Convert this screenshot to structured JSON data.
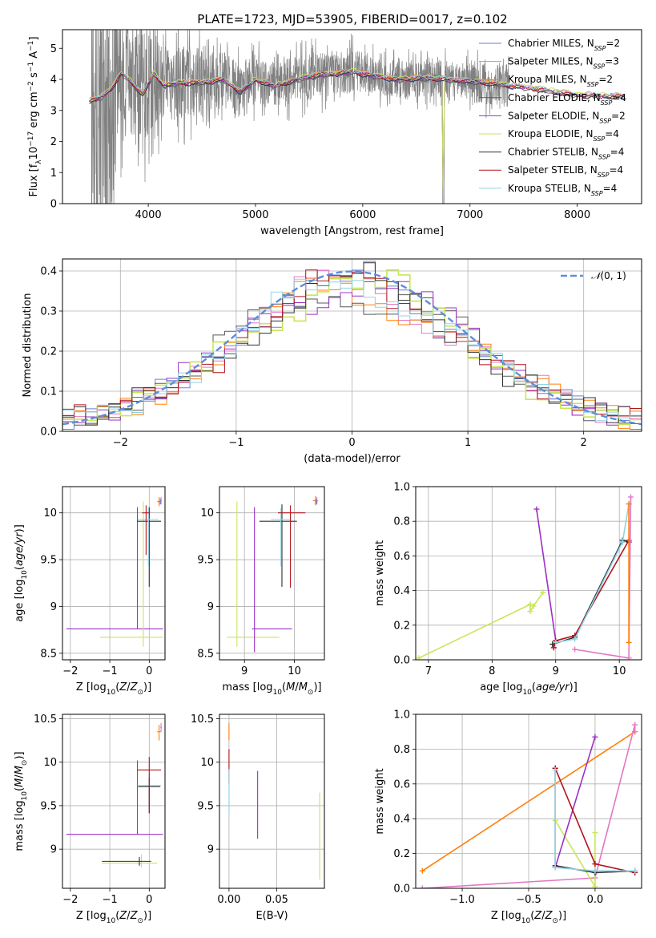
{
  "title": "PLATE=1723, MJD=53905, FIBERID=0017, z=0.102",
  "colors": {
    "Chabrier MILES": "#6a7fd8",
    "Salpeter MILES": "#e377c2",
    "Kroupa MILES": "#ff7f0e",
    "Chabrier ELODIE": "#595959",
    "Salpeter ELODIE": "#9b30c4",
    "Kroupa ELODIE": "#c7e65a",
    "Chabrier STELIB": "#303030",
    "Salpeter STELIB": "#b3141c",
    "Kroupa STELIB": "#8fd3e6",
    "data": "#808080",
    "gauss": "#5b8fd9"
  },
  "legend": [
    {
      "name": "Chabrier MILES",
      "nssp": "2"
    },
    {
      "name": "Salpeter MILES",
      "nssp": "3"
    },
    {
      "name": "Kroupa MILES",
      "nssp": "2"
    },
    {
      "name": "Chabrier ELODIE",
      "nssp": "4"
    },
    {
      "name": "Salpeter ELODIE",
      "nssp": "2"
    },
    {
      "name": "Kroupa ELODIE",
      "nssp": "4"
    },
    {
      "name": "Chabrier STELIB",
      "nssp": "4"
    },
    {
      "name": "Salpeter STELIB",
      "nssp": "4"
    },
    {
      "name": "Kroupa STELIB",
      "nssp": "4"
    }
  ],
  "chart_data": [
    {
      "type": "line",
      "id": "spectrum",
      "xlabel": "wavelength [Angstrom, rest frame]",
      "ylabel": "Flux [f_λ 10^-17 erg cm^-2 s^-1 A^-1]",
      "xlim": [
        3200,
        8600
      ],
      "ylim": [
        0,
        5.6
      ],
      "xticks": [
        4000,
        5000,
        6000,
        7000,
        8000
      ],
      "yticks": [
        0,
        1,
        2,
        3,
        4,
        5
      ],
      "data_range": [
        3470,
        7360
      ],
      "model_range": [
        3450,
        8450
      ],
      "model_anchors": [
        [
          3450,
          3.3
        ],
        [
          3550,
          3.4
        ],
        [
          3650,
          3.7
        ],
        [
          3750,
          4.2
        ],
        [
          3850,
          3.9
        ],
        [
          3950,
          3.5
        ],
        [
          4050,
          4.2
        ],
        [
          4150,
          3.8
        ],
        [
          4300,
          3.9
        ],
        [
          4500,
          3.9
        ],
        [
          4700,
          4.0
        ],
        [
          4860,
          3.6
        ],
        [
          5000,
          4.0
        ],
        [
          5175,
          3.8
        ],
        [
          5500,
          4.1
        ],
        [
          5900,
          4.25
        ],
        [
          6300,
          4.0
        ],
        [
          6563,
          4.05
        ],
        [
          7000,
          3.95
        ],
        [
          7500,
          3.75
        ],
        [
          8000,
          3.5
        ],
        [
          8450,
          3.45
        ]
      ]
    },
    {
      "type": "line",
      "id": "residual-histogram",
      "xlabel": "(data-model)/error",
      "ylabel": "Normed distribution",
      "xlim": [
        -2.5,
        2.5
      ],
      "ylim": [
        0,
        0.43
      ],
      "xticks": [
        -2,
        -1,
        0,
        1,
        2
      ],
      "yticks": [
        0.0,
        0.1,
        0.2,
        0.3,
        0.4
      ],
      "legend_label": "N(0,1)",
      "bins": 50
    },
    {
      "type": "scatter",
      "id": "age-vs-Z",
      "xlabel": "Z [log10(Z/Z⊙)]",
      "ylabel": "age  [log10(age/yr)]",
      "xlim": [
        -2.2,
        0.4
      ],
      "ylim": [
        8.43,
        10.28
      ],
      "xticks": [
        -2,
        -1,
        0
      ],
      "yticks": [
        8.5,
        9.0,
        9.5,
        10.0
      ],
      "points": [
        {
          "model": "Salpeter ELODIE",
          "x": -0.3,
          "xerr": [
            1.8,
            0.65
          ],
          "y": 8.76,
          "yerr": [
            0,
            1.3
          ]
        },
        {
          "model": "Kroupa ELODIE",
          "x": -0.15,
          "xerr": [
            1.1,
            0.5
          ],
          "y": 8.67,
          "yerr": [
            0.1,
            1.45
          ]
        },
        {
          "model": "Chabrier STELIB",
          "x": 0.0,
          "xerr": [
            0.3,
            0.3
          ],
          "y": 9.91,
          "yerr": [
            0.7,
            0.15
          ]
        },
        {
          "model": "Kroupa STELIB",
          "x": -0.02,
          "xerr": [
            0.27,
            0.25
          ],
          "y": 9.93,
          "yerr": [
            0.5,
            0.13
          ]
        },
        {
          "model": "Salpeter STELIB",
          "x": -0.08,
          "xerr": [
            0.1,
            0.1
          ],
          "y": 10.0,
          "yerr": [
            0.45,
            0.08
          ]
        },
        {
          "model": "Kroupa MILES",
          "x": 0.25,
          "xerr": [
            0.05,
            0.05
          ],
          "y": 10.12,
          "yerr": [
            0.05,
            0.05
          ]
        },
        {
          "model": "Salpeter MILES",
          "x": 0.3,
          "xerr": [
            0.02,
            0.02
          ],
          "y": 10.13,
          "yerr": [
            0.04,
            0.04
          ]
        },
        {
          "model": "Chabrier MILES",
          "x": 0.28,
          "xerr": [
            0.02,
            0.02
          ],
          "y": 10.12,
          "yerr": [
            0.03,
            0.03
          ]
        }
      ]
    },
    {
      "type": "scatter",
      "id": "age-vs-mass",
      "xlabel": "mass [log10(M/M⊙)]",
      "ylabel": "",
      "xlim": [
        8.5,
        10.6
      ],
      "ylim": [
        8.43,
        10.28
      ],
      "xticks": [
        9,
        10
      ],
      "yticks": [
        8.5,
        9.0,
        9.5,
        10.0
      ],
      "points": [
        {
          "model": "Kroupa ELODIE",
          "x": 8.85,
          "xerr": [
            0.2,
            0.85
          ],
          "y": 8.67,
          "yerr": [
            0.1,
            1.45
          ]
        },
        {
          "model": "Salpeter ELODIE",
          "x": 9.2,
          "xerr": [
            0.05,
            0.75
          ],
          "y": 8.76,
          "yerr": [
            0.25,
            1.3
          ]
        },
        {
          "model": "Chabrier STELIB",
          "x": 9.75,
          "xerr": [
            0.45,
            0.3
          ],
          "y": 9.91,
          "yerr": [
            0.7,
            0.18
          ]
        },
        {
          "model": "Kroupa STELIB",
          "x": 9.73,
          "xerr": [
            0.2,
            0.2
          ],
          "y": 9.93,
          "yerr": [
            0.5,
            0.12
          ]
        },
        {
          "model": "Salpeter STELIB",
          "x": 9.92,
          "xerr": [
            0.25,
            0.3
          ],
          "y": 10.0,
          "yerr": [
            0.8,
            0.08
          ]
        },
        {
          "model": "Kroupa MILES",
          "x": 10.42,
          "xerr": [
            0.05,
            0.05
          ],
          "y": 10.13,
          "yerr": [
            0.05,
            0.05
          ]
        },
        {
          "model": "Salpeter MILES",
          "x": 10.45,
          "xerr": [
            0.02,
            0.02
          ],
          "y": 10.13,
          "yerr": [
            0.04,
            0.04
          ]
        },
        {
          "model": "Chabrier MILES",
          "x": 10.44,
          "xerr": [
            0.02,
            0.02
          ],
          "y": 10.12,
          "yerr": [
            0.03,
            0.03
          ]
        }
      ]
    },
    {
      "type": "line",
      "id": "mass-weight-vs-age",
      "xlabel": "age  [log10(age/yr)]",
      "ylabel": "mass weight",
      "xlim": [
        6.8,
        10.35
      ],
      "ylim": [
        0,
        1.0
      ],
      "xticks": [
        7,
        8,
        9,
        10
      ],
      "yticks": [
        0.0,
        0.2,
        0.4,
        0.6,
        0.8,
        1.0
      ],
      "series": [
        {
          "model": "Kroupa ELODIE",
          "points": [
            [
              6.85,
              0.01
            ],
            [
              8.6,
              0.32
            ],
            [
              8.6,
              0.28
            ],
            [
              8.65,
              0.31
            ],
            [
              8.8,
              0.39
            ]
          ]
        },
        {
          "model": "Salpeter ELODIE",
          "points": [
            [
              8.7,
              0.87
            ],
            [
              9.0,
              0.11
            ]
          ]
        },
        {
          "model": "Chabrier STELIB",
          "points": [
            [
              8.95,
              0.09
            ],
            [
              9.3,
              0.13
            ],
            [
              10.05,
              0.69
            ],
            [
              10.15,
              0.68
            ]
          ]
        },
        {
          "model": "Salpeter STELIB",
          "points": [
            [
              8.97,
              0.07
            ],
            [
              9.0,
              0.11
            ],
            [
              9.3,
              0.14
            ],
            [
              10.15,
              0.69
            ]
          ]
        },
        {
          "model": "Kroupa STELIB",
          "points": [
            [
              9.0,
              0.1
            ],
            [
              9.3,
              0.12
            ],
            [
              10.05,
              0.68
            ],
            [
              10.15,
              0.9
            ]
          ]
        },
        {
          "model": "Salpeter MILES",
          "points": [
            [
              9.3,
              0.06
            ],
            [
              10.15,
              0.01
            ],
            [
              10.18,
              0.94
            ]
          ]
        },
        {
          "model": "Kroupa MILES",
          "points": [
            [
              10.15,
              0.1
            ],
            [
              10.15,
              0.9
            ]
          ]
        }
      ]
    },
    {
      "type": "scatter",
      "id": "mass-vs-Z",
      "xlabel": "Z [log10(Z/Z⊙)]",
      "ylabel": "mass [log10(M/M⊙)]",
      "xlim": [
        -2.2,
        0.4
      ],
      "ylim": [
        8.55,
        10.55
      ],
      "xticks": [
        -2,
        -1,
        0
      ],
      "yticks": [
        9.0,
        9.5,
        10.0,
        10.5
      ],
      "points": [
        {
          "model": "Salpeter ELODIE",
          "x": -0.3,
          "xerr": [
            1.8,
            0.65
          ],
          "y": 9.17,
          "yerr": [
            0,
            0.85
          ]
        },
        {
          "model": "Kroupa ELODIE",
          "x": -0.2,
          "xerr": [
            1.0,
            0.4
          ],
          "y": 8.84,
          "yerr": [
            0.05,
            0.1
          ]
        },
        {
          "model": "Chabrier STELIB",
          "x": -0.25,
          "xerr": [
            0.95,
            0.3
          ],
          "y": 8.86,
          "yerr": [
            0.05,
            0.05
          ]
        },
        {
          "model": "Kroupa STELIB",
          "x": 0.0,
          "xerr": [
            0.3,
            0.3
          ],
          "y": 9.73,
          "yerr": [
            0.25,
            0.15
          ]
        },
        {
          "model": "Chabrier STELIB",
          "x": 0.0,
          "xerr": [
            0.28,
            0.28
          ],
          "y": 9.72,
          "yerr": [
            0.3,
            0.1
          ]
        },
        {
          "model": "Salpeter STELIB",
          "x": 0.0,
          "xerr": [
            0.3,
            0.3
          ],
          "y": 9.91,
          "yerr": [
            0.5,
            0.15
          ]
        },
        {
          "model": "Kroupa MILES",
          "x": 0.25,
          "xerr": [
            0.05,
            0.05
          ],
          "y": 10.35,
          "yerr": [
            0.1,
            0.08
          ]
        },
        {
          "model": "Salpeter MILES",
          "x": 0.3,
          "xerr": [
            0.02,
            0.02
          ],
          "y": 10.4,
          "yerr": [
            0.05,
            0.05
          ]
        }
      ]
    },
    {
      "type": "scatter",
      "id": "mass-vs-EBV",
      "xlabel": "E(B-V)",
      "ylabel": "",
      "xlim": [
        -0.01,
        0.1
      ],
      "ylim": [
        8.55,
        10.55
      ],
      "xticks": [
        0.0,
        0.05
      ],
      "yticks": [
        9.0,
        9.5,
        10.0,
        10.5
      ],
      "points": [
        {
          "model": "Kroupa MILES",
          "x": 0.0,
          "y": 10.35,
          "yerr": [
            0.1,
            0.1
          ]
        },
        {
          "model": "Salpeter STELIB",
          "x": 0.0,
          "y": 10.0,
          "yerr": [
            0.25,
            0.15
          ]
        },
        {
          "model": "Kroupa STELIB",
          "x": 0.0,
          "y": 9.72,
          "yerr": [
            0.3,
            0.2
          ]
        },
        {
          "model": "Salpeter ELODIE",
          "x": 0.03,
          "y": 9.5,
          "yerr": [
            0.38,
            0.4
          ]
        },
        {
          "model": "Kroupa ELODIE",
          "x": 0.095,
          "y": 9.15,
          "yerr": [
            0.5,
            0.5
          ]
        }
      ]
    },
    {
      "type": "line",
      "id": "mass-weight-vs-Z",
      "xlabel": "Z [log10(Z/Z⊙)]",
      "ylabel": "mass weight",
      "xlim": [
        -1.35,
        0.35
      ],
      "ylim": [
        0,
        1.0
      ],
      "xticks": [
        -1.0,
        -0.5,
        0.0
      ],
      "yticks": [
        0.0,
        0.2,
        0.4,
        0.6,
        0.8,
        1.0
      ],
      "series": [
        {
          "model": "Kroupa MILES",
          "points": [
            [
              -1.3,
              0.1
            ],
            [
              0.3,
              0.9
            ]
          ]
        },
        {
          "model": "Salpeter MILES",
          "points": [
            [
              -1.3,
              0.0
            ],
            [
              0.0,
              0.06
            ],
            [
              0.3,
              0.94
            ],
            [
              0.3,
              0.9
            ]
          ]
        },
        {
          "model": "Kroupa ELODIE",
          "points": [
            [
              -0.3,
              0.39
            ],
            [
              0.0,
              0.01
            ],
            [
              0.0,
              0.32
            ]
          ]
        },
        {
          "model": "Salpeter ELODIE",
          "points": [
            [
              -0.3,
              0.12
            ],
            [
              0.0,
              0.87
            ]
          ]
        },
        {
          "model": "Chabrier STELIB",
          "points": [
            [
              -0.3,
              0.69
            ],
            [
              -0.3,
              0.13
            ],
            [
              0.0,
              0.09
            ],
            [
              0.3,
              0.1
            ]
          ]
        },
        {
          "model": "Salpeter STELIB",
          "points": [
            [
              -0.3,
              0.69
            ],
            [
              0.0,
              0.14
            ],
            [
              0.3,
              0.09
            ]
          ]
        },
        {
          "model": "Kroupa STELIB",
          "points": [
            [
              -0.3,
              0.68
            ],
            [
              -0.3,
              0.12
            ],
            [
              0.0,
              0.1
            ],
            [
              0.3,
              0.1
            ]
          ]
        }
      ]
    }
  ]
}
